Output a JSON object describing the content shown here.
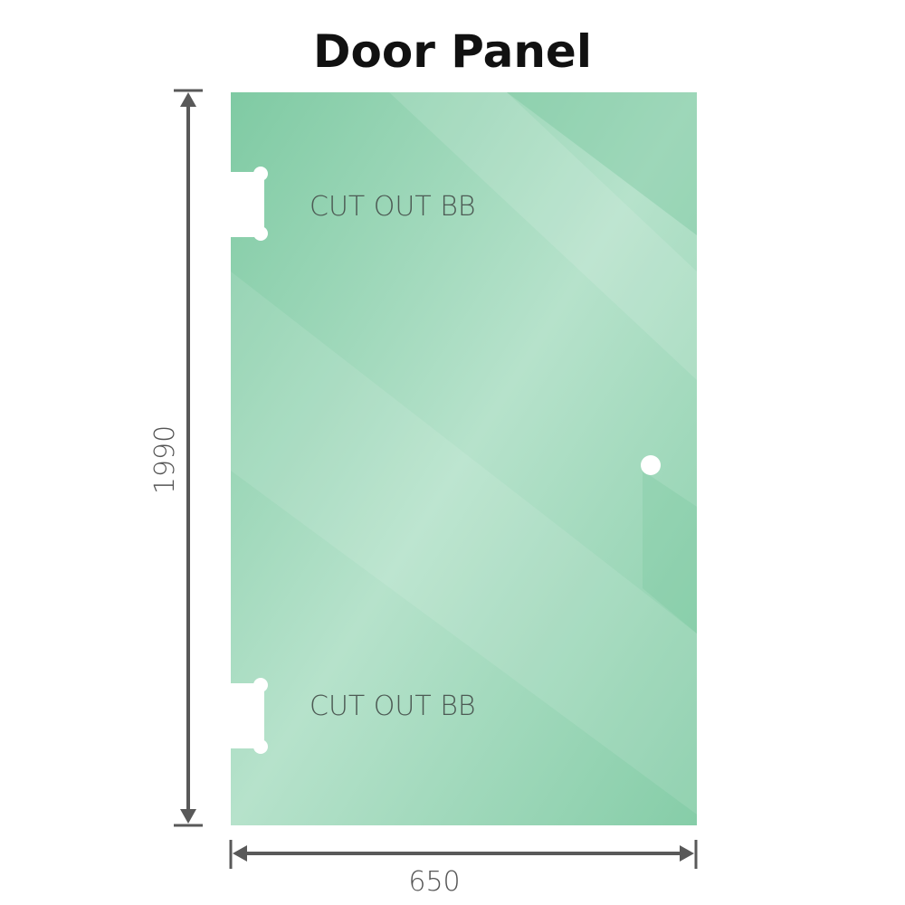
{
  "title": "Door Panel",
  "panel": {
    "glass_color": "#8fd0ae",
    "cutouts": [
      {
        "label": "CUT OUT BB"
      },
      {
        "label": "CUT OUT BB"
      }
    ]
  },
  "dimensions": {
    "height": "1990",
    "width": "650",
    "line_color": "#595959"
  }
}
